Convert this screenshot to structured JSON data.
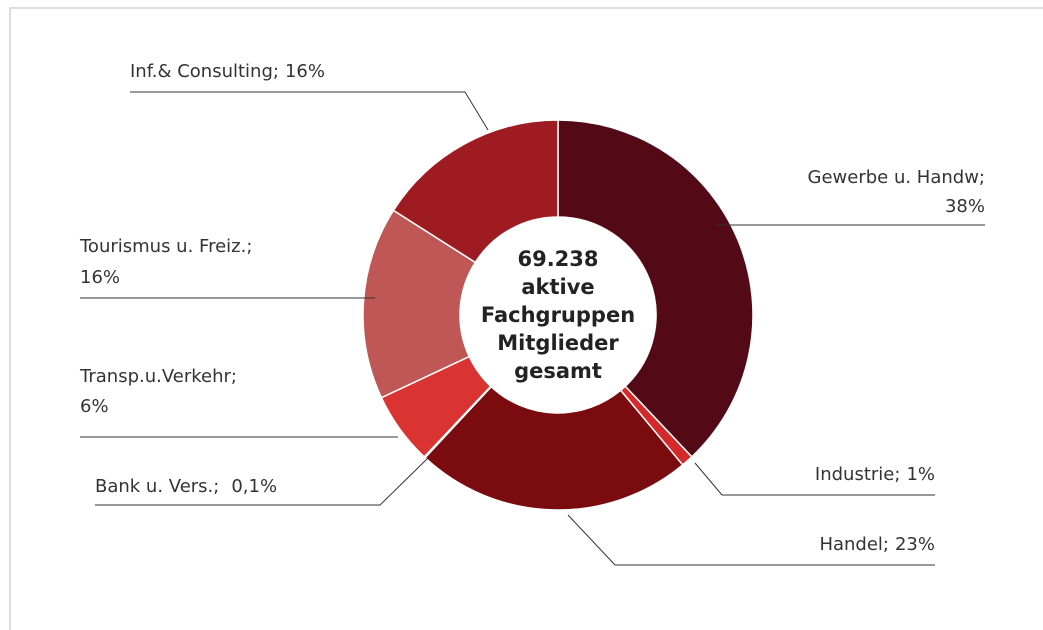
{
  "chart_data": {
    "type": "donut",
    "categories": [
      "Gewerbe u. Handw;",
      "Industrie;",
      "Handel;",
      "Bank u. Vers.;",
      "Transp.u.Verkehr;",
      "Tourismus u. Freiz.;",
      "Inf.& Consulting;"
    ],
    "values": [
      38,
      1,
      23,
      0.1,
      6,
      16,
      16
    ],
    "value_labels": [
      "38%",
      "1%",
      "23%",
      "0,1%",
      "6%",
      "16%",
      "16%"
    ],
    "colors": [
      "#540a16",
      "#d42a2c",
      "#7a0c10",
      "#c0302f",
      "#d93332",
      "#c05757",
      "#9e1b22"
    ],
    "center_text": [
      "69.238",
      "aktive",
      "Fachgruppen",
      "Mitglieder",
      "gesamt"
    ]
  }
}
